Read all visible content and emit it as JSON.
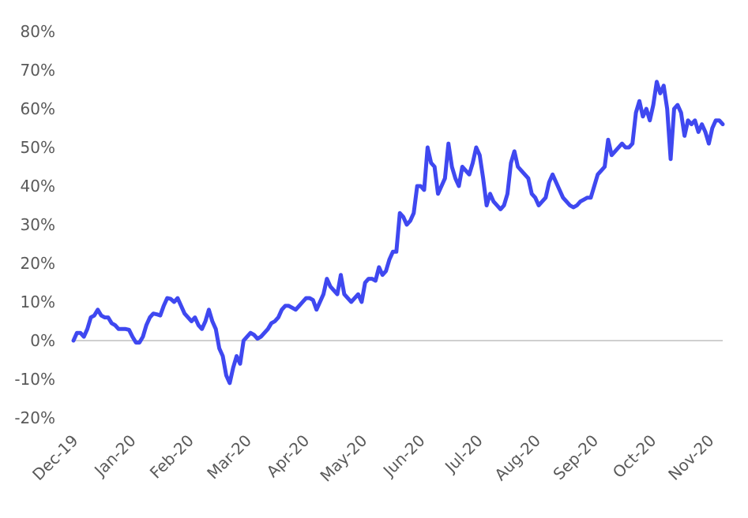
{
  "chart_data": {
    "type": "line",
    "title": "",
    "xlabel": "",
    "ylabel": "",
    "ylim": [
      -0.2,
      0.8
    ],
    "y_tick_labels": [
      "-20%",
      "-10%",
      "0%",
      "10%",
      "20%",
      "30%",
      "40%",
      "50%",
      "60%",
      "70%",
      "80%"
    ],
    "y_tick_values": [
      -0.2,
      -0.1,
      0,
      0.1,
      0.2,
      0.3,
      0.4,
      0.5,
      0.6,
      0.7,
      0.8
    ],
    "x_tick_labels": [
      "Dec-19",
      "Jan-20",
      "Feb-20",
      "Mar-20",
      "Apr-20",
      "May-20",
      "Jun-20",
      "Jul-20",
      "Aug-20",
      "Sep-20",
      "Oct-20",
      "Nov-20"
    ],
    "grid": false,
    "colors": {
      "series": "#3f48f0",
      "zero_line": "#bfbfbf",
      "tick_text": "#595959"
    },
    "series": [
      {
        "values": [
          0.0,
          0.02,
          0.02,
          0.01,
          0.03,
          0.06,
          0.065,
          0.08,
          0.065,
          0.06,
          0.06,
          0.045,
          0.04,
          0.03,
          0.03,
          0.03,
          0.028,
          0.01,
          -0.005,
          -0.005,
          0.01,
          0.04,
          0.06,
          0.07,
          0.068,
          0.065,
          0.09,
          0.11,
          0.108,
          0.1,
          0.11,
          0.09,
          0.07,
          0.06,
          0.05,
          0.06,
          0.04,
          0.03,
          0.05,
          0.08,
          0.05,
          0.03,
          -0.02,
          -0.04,
          -0.09,
          -0.11,
          -0.07,
          -0.04,
          -0.06,
          0.0,
          0.01,
          0.02,
          0.015,
          0.005,
          0.01,
          0.02,
          0.03,
          0.045,
          0.05,
          0.06,
          0.08,
          0.09,
          0.09,
          0.085,
          0.08,
          0.09,
          0.1,
          0.11,
          0.11,
          0.105,
          0.08,
          0.1,
          0.12,
          0.16,
          0.14,
          0.13,
          0.12,
          0.17,
          0.12,
          0.11,
          0.1,
          0.11,
          0.12,
          0.1,
          0.15,
          0.16,
          0.16,
          0.155,
          0.19,
          0.17,
          0.18,
          0.21,
          0.23,
          0.23,
          0.33,
          0.32,
          0.3,
          0.31,
          0.33,
          0.4,
          0.4,
          0.39,
          0.5,
          0.46,
          0.45,
          0.38,
          0.4,
          0.42,
          0.51,
          0.45,
          0.42,
          0.4,
          0.45,
          0.44,
          0.43,
          0.46,
          0.5,
          0.48,
          0.42,
          0.35,
          0.38,
          0.36,
          0.35,
          0.34,
          0.35,
          0.38,
          0.46,
          0.49,
          0.45,
          0.44,
          0.43,
          0.42,
          0.38,
          0.37,
          0.35,
          0.36,
          0.37,
          0.41,
          0.43,
          0.41,
          0.39,
          0.37,
          0.36,
          0.35,
          0.345,
          0.35,
          0.36,
          0.365,
          0.37,
          0.37,
          0.4,
          0.43,
          0.44,
          0.45,
          0.52,
          0.48,
          0.49,
          0.5,
          0.51,
          0.5,
          0.5,
          0.51,
          0.59,
          0.62,
          0.58,
          0.6,
          0.57,
          0.61,
          0.67,
          0.64,
          0.66,
          0.6,
          0.47,
          0.6,
          0.61,
          0.59,
          0.53,
          0.57,
          0.56,
          0.57,
          0.54,
          0.56,
          0.54,
          0.51,
          0.55,
          0.57,
          0.57,
          0.56
        ]
      }
    ]
  }
}
